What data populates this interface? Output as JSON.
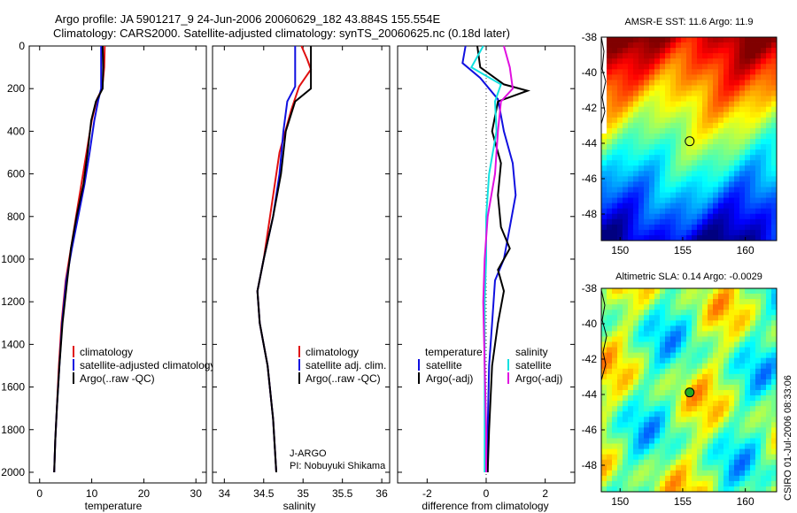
{
  "header": {
    "line1": "Argo profile: JA 5901217_9 24-Jun-2006 20060629_182 43.884S 155.554E",
    "line2": "Climatology: CARS2000. Satellite-adjusted climatology: synTS_20060625.nc (0.18d later)"
  },
  "side_label": "CSIRO 01-Jul-2006 08:33:06",
  "colors": {
    "climatology": "#e01010",
    "satellite": "#1010e0",
    "argo": "#000000",
    "sat_salinity": "#10e0e0",
    "argo_salinity": "#e010e0"
  },
  "chart_data": [
    {
      "type": "line",
      "name": "temperature-profile",
      "xlabel": "temperature",
      "ylabel": "",
      "xlim": [
        -2,
        32
      ],
      "ylim": [
        2050,
        0
      ],
      "xticks": [
        "0",
        "10",
        "20",
        "30"
      ],
      "xtick_values": [
        0,
        10,
        20,
        30
      ],
      "yticks": [
        "0",
        "200",
        "400",
        "600",
        "800",
        "1000",
        "1200",
        "1400",
        "1600",
        "1800",
        "2000"
      ],
      "ytick_values": [
        0,
        200,
        400,
        600,
        800,
        1000,
        1200,
        1400,
        1600,
        1800,
        2000
      ],
      "legend": [
        "climatology",
        "satellite-adjusted climatology",
        "Argo(..raw -QC)"
      ],
      "series": [
        {
          "name": "climatology",
          "color": "#e01010",
          "points": [
            [
              12.5,
              0
            ],
            [
              12.4,
              100
            ],
            [
              12.0,
              200
            ],
            [
              11.0,
              250
            ],
            [
              10.0,
              350
            ],
            [
              9.0,
              500
            ],
            [
              8.0,
              650
            ],
            [
              7.0,
              800
            ],
            [
              6.0,
              950
            ],
            [
              5.0,
              1100
            ],
            [
              4.2,
              1300
            ],
            [
              3.7,
              1500
            ],
            [
              3.3,
              1700
            ],
            [
              3.0,
              1850
            ],
            [
              2.8,
              2000
            ]
          ]
        },
        {
          "name": "satellite-adjusted climatology",
          "color": "#1010e0",
          "points": [
            [
              11.8,
              0
            ],
            [
              11.8,
              100
            ],
            [
              11.8,
              200
            ],
            [
              11.3,
              250
            ],
            [
              10.5,
              350
            ],
            [
              9.6,
              500
            ],
            [
              8.6,
              650
            ],
            [
              7.4,
              800
            ],
            [
              6.2,
              950
            ],
            [
              5.1,
              1100
            ],
            [
              4.3,
              1300
            ],
            [
              3.8,
              1500
            ],
            [
              3.3,
              1700
            ],
            [
              3.0,
              1850
            ],
            [
              2.8,
              2000
            ]
          ]
        },
        {
          "name": "Argo(..raw -QC)",
          "color": "#000000",
          "points": [
            [
              12.1,
              0
            ],
            [
              12.2,
              100
            ],
            [
              12.1,
              200
            ],
            [
              10.8,
              260
            ],
            [
              9.9,
              350
            ],
            [
              9.2,
              500
            ],
            [
              8.4,
              650
            ],
            [
              7.1,
              800
            ],
            [
              6.0,
              950
            ],
            [
              5.3,
              1100
            ],
            [
              4.4,
              1300
            ],
            [
              3.8,
              1500
            ],
            [
              3.3,
              1700
            ],
            [
              3.0,
              1850
            ],
            [
              2.8,
              2000
            ]
          ]
        }
      ]
    },
    {
      "type": "line",
      "name": "salinity-profile",
      "xlabel": "salinity",
      "xlim": [
        33.85,
        36.1
      ],
      "ylim": [
        2050,
        0
      ],
      "xticks": [
        "34",
        "34.5",
        "35",
        "35.5",
        "36"
      ],
      "xtick_values": [
        34,
        34.5,
        35,
        35.5,
        36
      ],
      "legend": [
        "climatology",
        "satellite adj. clim.",
        "Argo(..raw -QC)"
      ],
      "annotations": [
        "J-ARGO",
        "PI: Nobuyuki Shikama"
      ],
      "series": [
        {
          "name": "climatology",
          "color": "#e01010",
          "points": [
            [
              34.98,
              0
            ],
            [
              35.05,
              60
            ],
            [
              35.1,
              110
            ],
            [
              34.95,
              190
            ],
            [
              34.85,
              300
            ],
            [
              34.7,
              500
            ],
            [
              34.6,
              750
            ],
            [
              34.5,
              1000
            ],
            [
              34.42,
              1150
            ],
            [
              34.45,
              1300
            ],
            [
              34.55,
              1500
            ],
            [
              34.62,
              1750
            ],
            [
              34.66,
              2000
            ]
          ]
        },
        {
          "name": "satellite adj. clim.",
          "color": "#1010e0",
          "points": [
            [
              34.9,
              0
            ],
            [
              34.9,
              80
            ],
            [
              34.9,
              190
            ],
            [
              34.8,
              260
            ],
            [
              34.75,
              400
            ],
            [
              34.7,
              600
            ],
            [
              34.62,
              800
            ],
            [
              34.5,
              1000
            ],
            [
              34.42,
              1150
            ],
            [
              34.45,
              1300
            ],
            [
              34.55,
              1500
            ],
            [
              34.62,
              1750
            ],
            [
              34.66,
              2000
            ]
          ]
        },
        {
          "name": "Argo(..raw -QC)",
          "color": "#000000",
          "points": [
            [
              35.1,
              0
            ],
            [
              35.1,
              150
            ],
            [
              35.1,
              200
            ],
            [
              34.9,
              260
            ],
            [
              34.78,
              400
            ],
            [
              34.72,
              600
            ],
            [
              34.62,
              800
            ],
            [
              34.5,
              1000
            ],
            [
              34.42,
              1150
            ],
            [
              34.45,
              1300
            ],
            [
              34.55,
              1500
            ],
            [
              34.62,
              1750
            ],
            [
              34.66,
              2000
            ]
          ]
        }
      ]
    },
    {
      "type": "line",
      "name": "difference-profile",
      "xlabel": "difference from climatology",
      "xlim": [
        -3,
        3
      ],
      "ylim": [
        2050,
        0
      ],
      "xticks": [
        "-2",
        "0",
        "2"
      ],
      "xtick_values": [
        -2,
        0,
        2
      ],
      "legend": {
        "temperature": [
          "temperature",
          "satellite",
          "Argo(-adj)"
        ],
        "salinity": [
          "salinity",
          "satellite",
          "Argo(-adj)"
        ]
      },
      "series": [
        {
          "name": "temperature satellite",
          "color": "#1010e0",
          "points": [
            [
              -0.7,
              0
            ],
            [
              -0.8,
              80
            ],
            [
              -0.2,
              150
            ],
            [
              0.4,
              250
            ],
            [
              0.6,
              400
            ],
            [
              0.9,
              550
            ],
            [
              1.0,
              700
            ],
            [
              0.8,
              850
            ],
            [
              0.6,
              1000
            ],
            [
              0.3,
              1100
            ],
            [
              0.2,
              1300
            ],
            [
              0.1,
              1500
            ],
            [
              0.05,
              1800
            ],
            [
              0.05,
              2000
            ]
          ]
        },
        {
          "name": "temperature Argo(-adj)",
          "color": "#000000",
          "points": [
            [
              -0.3,
              0
            ],
            [
              -0.2,
              100
            ],
            [
              0.6,
              180
            ],
            [
              1.4,
              210
            ],
            [
              0.4,
              260
            ],
            [
              0.2,
              400
            ],
            [
              0.5,
              550
            ],
            [
              0.4,
              700
            ],
            [
              0.5,
              850
            ],
            [
              0.8,
              950
            ],
            [
              0.4,
              1050
            ],
            [
              0.6,
              1150
            ],
            [
              0.4,
              1300
            ],
            [
              0.2,
              1500
            ],
            [
              0.1,
              1800
            ],
            [
              0.05,
              2000
            ]
          ]
        },
        {
          "name": "salinity satellite",
          "color": "#10e0e0",
          "points": [
            [
              -0.1,
              0
            ],
            [
              -0.5,
              100
            ],
            [
              0.5,
              180
            ],
            [
              0.3,
              260
            ],
            [
              0.35,
              400
            ],
            [
              0.1,
              600
            ],
            [
              0.0,
              800
            ],
            [
              0.0,
              1000
            ],
            [
              -0.05,
              1200
            ],
            [
              -0.05,
              1500
            ],
            [
              -0.05,
              1800
            ],
            [
              -0.05,
              2000
            ]
          ]
        },
        {
          "name": "salinity Argo(-adj)",
          "color": "#e010e0",
          "points": [
            [
              0.6,
              0
            ],
            [
              0.8,
              100
            ],
            [
              0.9,
              200
            ],
            [
              0.5,
              260
            ],
            [
              0.4,
              400
            ],
            [
              0.3,
              600
            ],
            [
              0.05,
              800
            ],
            [
              -0.05,
              1000
            ],
            [
              -0.1,
              1200
            ],
            [
              -0.05,
              1500
            ],
            [
              0.0,
              1800
            ],
            [
              0.0,
              2000
            ]
          ]
        }
      ]
    },
    {
      "type": "heatmap",
      "name": "sst-map",
      "title": "AMSR-E SST: 11.6 Argo: 11.9",
      "xlim": [
        148.5,
        162.5
      ],
      "ylim": [
        -49.5,
        -38
      ],
      "xticks": [
        "150",
        "155",
        "160"
      ],
      "xtick_values": [
        150,
        155,
        160
      ],
      "yticks": [
        "-38",
        "-40",
        "-42",
        "-44",
        "-46",
        "-48"
      ],
      "ytick_values": [
        -38,
        -40,
        -42,
        -44,
        -46,
        -48
      ],
      "marker": {
        "lon": 155.554,
        "lat": -43.884
      }
    },
    {
      "type": "heatmap",
      "name": "sla-map",
      "title": "Altimetric SLA: 0.14 Argo: -0.0029",
      "xlim": [
        148.5,
        162.5
      ],
      "ylim": [
        -49.5,
        -38
      ],
      "xticks": [
        "150",
        "155",
        "160"
      ],
      "xtick_values": [
        150,
        155,
        160
      ],
      "yticks": [
        "-38",
        "-40",
        "-42",
        "-44",
        "-46",
        "-48"
      ],
      "ytick_values": [
        -38,
        -40,
        -42,
        -44,
        -46,
        -48
      ],
      "marker": {
        "lon": 155.554,
        "lat": -43.884
      }
    }
  ]
}
